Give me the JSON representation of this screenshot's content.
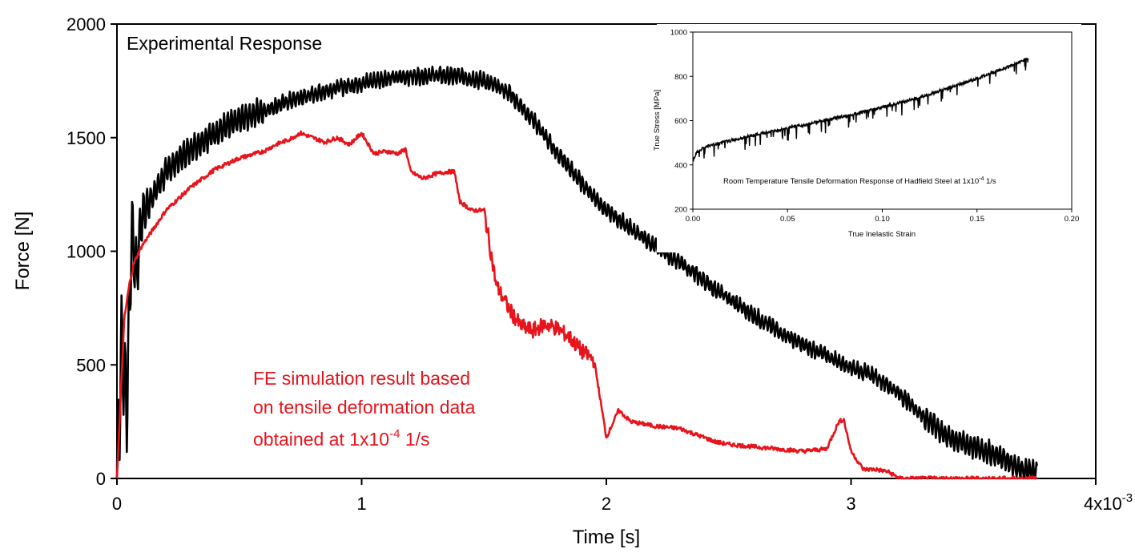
{
  "chart_data": [
    {
      "type": "line",
      "title": "",
      "xlabel": "Time [s]",
      "ylabel": "Force [N]",
      "x_scale_label": "4x10",
      "x_scale_exponent": "-3",
      "xlim": [
        0,
        4
      ],
      "ylim": [
        0,
        2000
      ],
      "xticks": [
        0,
        1,
        2,
        3
      ],
      "yticks": [
        0,
        500,
        1000,
        1500,
        2000
      ],
      "grid": false,
      "annotations": {
        "experimental_label": "Experimental Response",
        "fe_line1": "FE simulation result based",
        "fe_line2": "on tensile deformation data",
        "fe_line3_prefix": "obtained at 1x10",
        "fe_line3_exponent": "-4",
        "fe_line3_suffix": " 1/s"
      },
      "series": [
        {
          "name": "Experimental Response",
          "color": "#000000",
          "oscillating": true,
          "x": [
            0,
            0.02,
            0.04,
            0.06,
            0.08,
            0.1,
            0.15,
            0.2,
            0.3,
            0.4,
            0.5,
            0.6,
            0.7,
            0.8,
            0.9,
            1.0,
            1.1,
            1.2,
            1.3,
            1.4,
            1.5,
            1.6,
            1.7,
            1.8,
            1.9,
            2.0,
            2.1,
            2.2,
            2.3,
            2.4,
            2.5,
            2.6,
            2.7,
            2.8,
            2.9,
            3.0,
            3.1,
            3.2,
            3.3,
            3.4,
            3.5,
            3.6,
            3.7,
            3.76
          ],
          "y": [
            0,
            600,
            300,
            1100,
            900,
            1150,
            1250,
            1350,
            1450,
            1520,
            1580,
            1620,
            1660,
            1690,
            1720,
            1740,
            1760,
            1770,
            1775,
            1770,
            1750,
            1700,
            1580,
            1430,
            1300,
            1180,
            1100,
            1020,
            950,
            870,
            790,
            720,
            650,
            590,
            540,
            490,
            450,
            370,
            270,
            180,
            140,
            100,
            40,
            20
          ]
        },
        {
          "name": "FE simulation result",
          "color": "#e8141c",
          "oscillating": false,
          "x": [
            0,
            0.03,
            0.05,
            0.07,
            0.1,
            0.15,
            0.2,
            0.3,
            0.4,
            0.5,
            0.6,
            0.65,
            0.7,
            0.75,
            0.8,
            0.85,
            0.9,
            0.95,
            1.0,
            1.05,
            1.1,
            1.15,
            1.18,
            1.2,
            1.25,
            1.3,
            1.35,
            1.38,
            1.4,
            1.45,
            1.5,
            1.52,
            1.55,
            1.6,
            1.65,
            1.7,
            1.75,
            1.8,
            1.85,
            1.9,
            1.95,
            2.0,
            2.05,
            2.1,
            2.2,
            2.3,
            2.4,
            2.45,
            2.5,
            2.6,
            2.7,
            2.8,
            2.9,
            2.95,
            2.97,
            3.0,
            3.05,
            3.1,
            3.15,
            3.2,
            3.76
          ],
          "y": [
            0,
            700,
            850,
            950,
            1020,
            1100,
            1180,
            1280,
            1360,
            1410,
            1440,
            1470,
            1490,
            1520,
            1500,
            1480,
            1500,
            1470,
            1520,
            1430,
            1440,
            1430,
            1450,
            1350,
            1320,
            1340,
            1350,
            1350,
            1220,
            1180,
            1180,
            1050,
            850,
            750,
            670,
            650,
            680,
            660,
            620,
            560,
            520,
            180,
            300,
            250,
            230,
            220,
            180,
            160,
            150,
            140,
            130,
            120,
            130,
            250,
            260,
            120,
            40,
            40,
            30,
            0,
            0
          ]
        }
      ]
    },
    {
      "type": "line",
      "title": "Room Temperature Tensile Deformation Response of Hadfield Steel at 1x10",
      "title_exponent": "-4",
      "title_suffix": " 1/s",
      "xlabel": "True Inelastic Strain",
      "ylabel": "True Stress [MPa]",
      "xlim": [
        0,
        0.2
      ],
      "ylim": [
        200,
        1000
      ],
      "xticks": [
        "0.00",
        "0.05",
        "0.10",
        "0.15",
        "0.20"
      ],
      "yticks": [
        "200",
        "400",
        "600",
        "800",
        "1000"
      ],
      "grid": false,
      "series": [
        {
          "name": "True Stress",
          "color": "#000000",
          "x": [
            0,
            0.002,
            0.005,
            0.01,
            0.02,
            0.03,
            0.05,
            0.08,
            0.1,
            0.12,
            0.15,
            0.17,
            0.177
          ],
          "y": [
            420,
            455,
            475,
            490,
            510,
            530,
            565,
            620,
            660,
            705,
            790,
            855,
            885
          ]
        }
      ]
    }
  ]
}
